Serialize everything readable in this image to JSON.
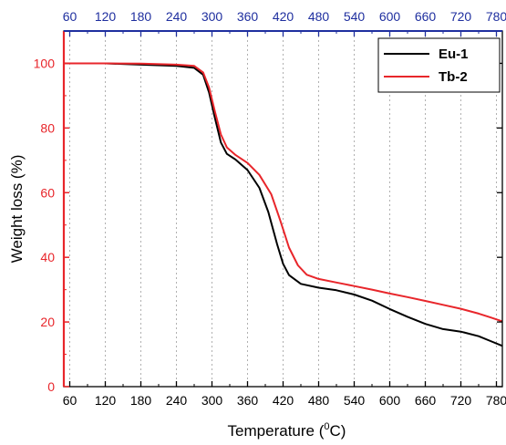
{
  "chart_data": {
    "type": "line",
    "xlabel_main": "Temperature (",
    "xlabel_sup": "0",
    "xlabel_end": "C)",
    "ylabel": "Weight loss (%)",
    "xlim": [
      50,
      790
    ],
    "ylim": [
      0,
      110
    ],
    "x_ticks": [
      60,
      120,
      180,
      240,
      300,
      360,
      420,
      480,
      540,
      600,
      660,
      720,
      780
    ],
    "y_ticks": [
      0,
      20,
      40,
      60,
      80,
      100
    ],
    "grid": "vertical-dotted",
    "legend_position": "top-right",
    "colors": {
      "bottom_axis": "#000000",
      "top_axis": "#1f2f9f",
      "left_axis": "#e8262b",
      "grid": "#b0b0b0"
    },
    "series": [
      {
        "name": "Eu-1",
        "color": "#000000",
        "points": [
          [
            50,
            100
          ],
          [
            120,
            100
          ],
          [
            180,
            99.6
          ],
          [
            240,
            99.2
          ],
          [
            270,
            98.6
          ],
          [
            285,
            96.5
          ],
          [
            295,
            91
          ],
          [
            305,
            83
          ],
          [
            315,
            75.5
          ],
          [
            325,
            72
          ],
          [
            340,
            70.2
          ],
          [
            360,
            67
          ],
          [
            380,
            61.5
          ],
          [
            395,
            54
          ],
          [
            410,
            44
          ],
          [
            420,
            38
          ],
          [
            430,
            34.5
          ],
          [
            450,
            31.8
          ],
          [
            480,
            30.6
          ],
          [
            510,
            29.8
          ],
          [
            540,
            28.5
          ],
          [
            570,
            26.6
          ],
          [
            600,
            24
          ],
          [
            630,
            21.6
          ],
          [
            660,
            19.4
          ],
          [
            690,
            17.8
          ],
          [
            720,
            17
          ],
          [
            750,
            15.6
          ],
          [
            770,
            14.1
          ],
          [
            790,
            12.6
          ]
        ]
      },
      {
        "name": "Tb-2",
        "color": "#e8262b",
        "points": [
          [
            50,
            100
          ],
          [
            120,
            100
          ],
          [
            180,
            99.9
          ],
          [
            240,
            99.6
          ],
          [
            270,
            99.2
          ],
          [
            285,
            97.2
          ],
          [
            295,
            92.5
          ],
          [
            305,
            85
          ],
          [
            315,
            78
          ],
          [
            325,
            74
          ],
          [
            340,
            71.6
          ],
          [
            360,
            69.2
          ],
          [
            380,
            65.5
          ],
          [
            400,
            59.5
          ],
          [
            415,
            51.5
          ],
          [
            430,
            43
          ],
          [
            445,
            37.5
          ],
          [
            460,
            34.6
          ],
          [
            480,
            33.3
          ],
          [
            510,
            32.2
          ],
          [
            540,
            31.1
          ],
          [
            570,
            30
          ],
          [
            600,
            28.8
          ],
          [
            630,
            27.7
          ],
          [
            660,
            26.5
          ],
          [
            690,
            25.3
          ],
          [
            720,
            24.1
          ],
          [
            750,
            22.6
          ],
          [
            770,
            21.4
          ],
          [
            790,
            20.2
          ]
        ]
      }
    ]
  }
}
